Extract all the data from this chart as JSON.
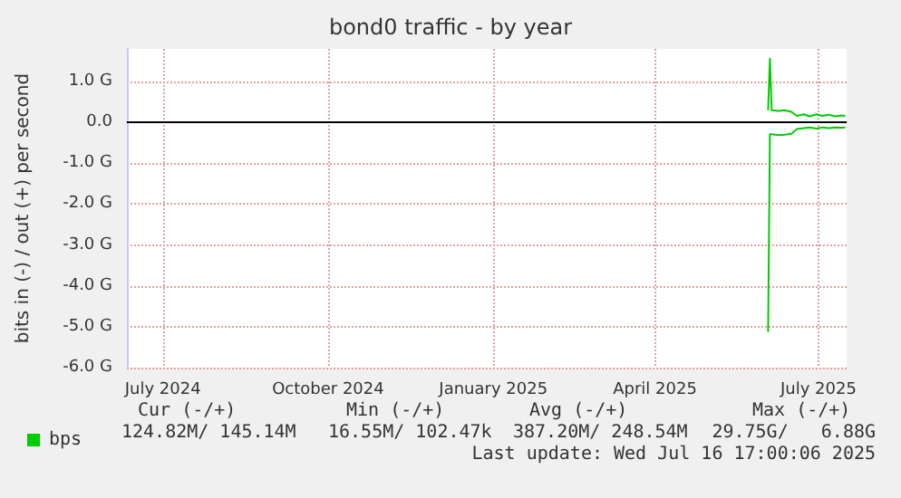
{
  "chart_data": {
    "type": "line",
    "title": "bond0 traffic - by year",
    "ylabel": "bits in (-) / out (+) per second",
    "series": [
      {
        "name": "bps",
        "color": "#00cc00",
        "x": [
          "2025-06-03",
          "2025-06-04",
          "2025-06-05",
          "2025-06-09",
          "2025-06-12",
          "2025-06-16",
          "2025-06-19",
          "2025-06-23",
          "2025-06-26",
          "2025-06-30",
          "2025-07-03",
          "2025-07-07",
          "2025-07-10",
          "2025-07-14",
          "2025-07-16"
        ],
        "values": [
          0.3,
          1.56,
          0.3,
          0.28,
          0.3,
          0.26,
          0.16,
          0.2,
          0.15,
          0.2,
          0.16,
          0.19,
          0.15,
          0.17,
          0.16
        ]
      },
      {
        "color": "#00cc00",
        "x": [
          "2025-06-03",
          "2025-06-04",
          "2025-06-05",
          "2025-06-09",
          "2025-06-12",
          "2025-06-16",
          "2025-06-19",
          "2025-06-23",
          "2025-06-26",
          "2025-06-30",
          "2025-07-03",
          "2025-07-07",
          "2025-07-10",
          "2025-07-14",
          "2025-07-16"
        ],
        "values": [
          -5.13,
          -0.29,
          -0.29,
          -0.31,
          -0.3,
          -0.28,
          -0.16,
          -0.14,
          -0.12,
          -0.15,
          -0.12,
          -0.14,
          -0.12,
          -0.13,
          -0.12
        ]
      }
    ],
    "xlim": [
      "2024-06-11",
      "2025-07-16T17:00"
    ],
    "xticks": [
      {
        "value": "2024-07-01",
        "label": "July 2024"
      },
      {
        "value": "2024-10-01",
        "label": "October 2024"
      },
      {
        "value": "2025-01-01",
        "label": "January 2025"
      },
      {
        "value": "2025-04-01",
        "label": "April 2025"
      },
      {
        "value": "2025-07-01",
        "label": "July 2025"
      }
    ],
    "ylim": [
      -6,
      1.8
    ],
    "yticks": [
      {
        "value": -6,
        "label": "-6.0 G"
      },
      {
        "value": -5,
        "label": "-5.0 G"
      },
      {
        "value": -4,
        "label": "-4.0 G"
      },
      {
        "value": -3,
        "label": "-3.0 G"
      },
      {
        "value": -2,
        "label": "-2.0 G"
      },
      {
        "value": -1,
        "label": "-1.0 G"
      },
      {
        "value": 0,
        "label": "0.0"
      },
      {
        "value": 1,
        "label": "1.0 G"
      }
    ],
    "ref_lines": [
      {
        "axis": "y",
        "value": 0,
        "color": "#000000"
      }
    ],
    "grid": true,
    "legend": "bottom left",
    "marker": "none",
    "line_style": "solid",
    "annotations": [
      "Cur (-/+)",
      "Min (-/+)",
      "Avg (-/+)",
      "Max (-/+)",
      "124.82M/ 145.14M",
      "16.55M/ 102.47k",
      "387.20M/ 248.54M",
      "29.75G/   6.88G",
      "Last update: Wed Jul 16 17:00:06 2025"
    ]
  }
}
